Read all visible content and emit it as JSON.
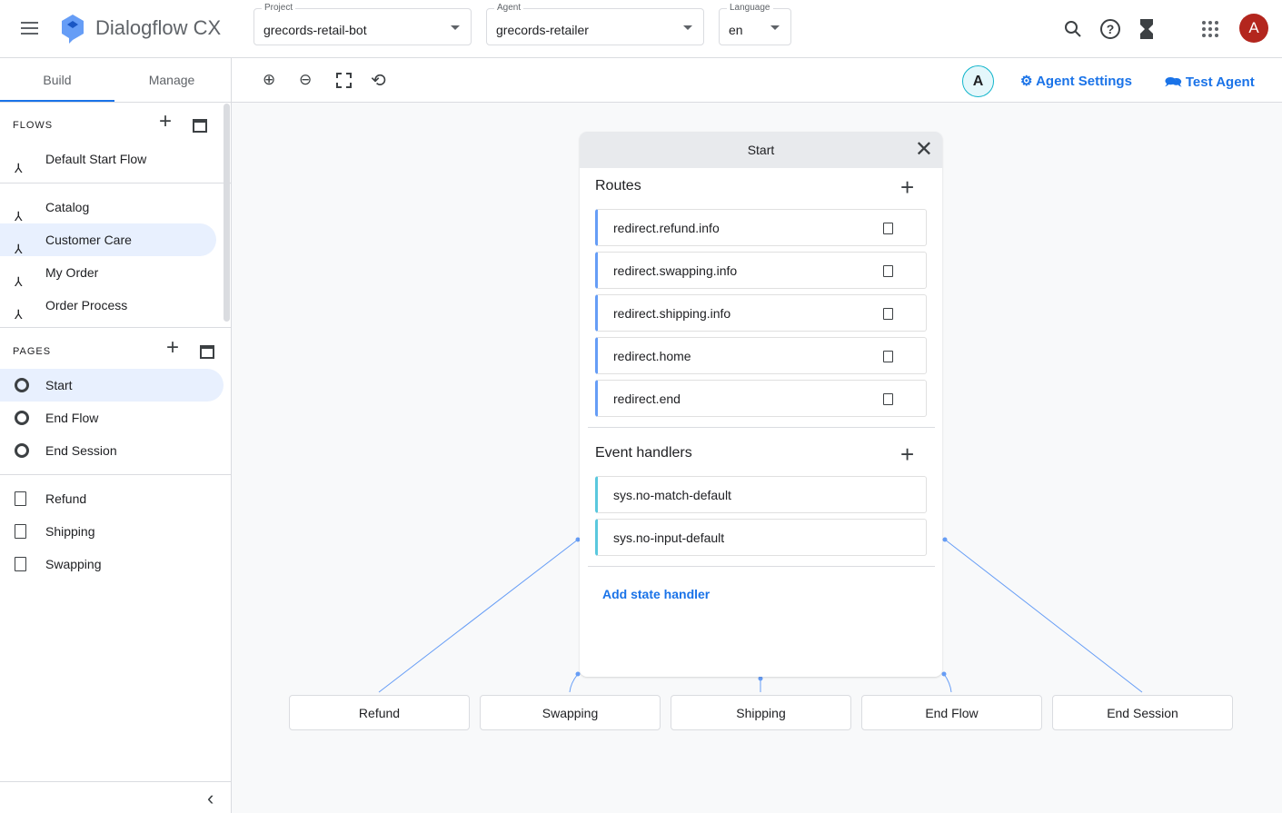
{
  "header": {
    "app_title": "Dialogflow CX",
    "project": {
      "label": "Project",
      "value": "grecords-retail-bot"
    },
    "agent": {
      "label": "Agent",
      "value": "grecords-retailer"
    },
    "language": {
      "label": "Language",
      "value": "en"
    },
    "avatar": "A",
    "avatar_color": "#b3261e"
  },
  "sidebar": {
    "tabs": [
      "Build",
      "Manage"
    ],
    "flows_label": "FLOWS",
    "default_flow": "Default Start Flow",
    "flows": [
      "Catalog",
      "Customer Care",
      "My Order",
      "Order Process"
    ],
    "selected_flow": "Customer Care",
    "pages_label": "PAGES",
    "pages": [
      "Start",
      "End Flow",
      "End Session"
    ],
    "selected_page": "Start",
    "custom_pages": [
      "Refund",
      "Shipping",
      "Swapping"
    ]
  },
  "toolbar": {
    "agent_avatar": "A",
    "agent_settings": "Agent Settings",
    "test_agent": "Test Agent"
  },
  "panel": {
    "title": "Start",
    "routes_label": "Routes",
    "routes": [
      "redirect.refund.info",
      "redirect.swapping.info",
      "redirect.shipping.info",
      "redirect.home",
      "redirect.end"
    ],
    "events_label": "Event handlers",
    "events": [
      "sys.no-match-default",
      "sys.no-input-default"
    ],
    "add_state_handler": "Add state handler"
  },
  "nodes": [
    "Refund",
    "Swapping",
    "Shipping",
    "End Flow",
    "End Session"
  ],
  "colors": {
    "accent": "#1a73e8",
    "route_bar": "#669df6",
    "event_bar": "#5ac8de",
    "selected_bg": "#e8f0fe"
  }
}
